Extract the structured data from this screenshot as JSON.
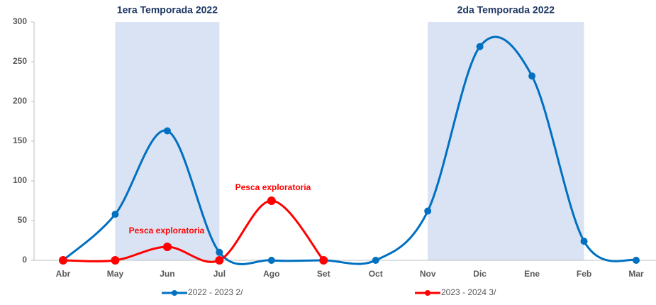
{
  "chart_data": {
    "type": "line",
    "categories": [
      "Abr",
      "May",
      "Jun",
      "Jul",
      "Ago",
      "Set",
      "Oct",
      "Nov",
      "Dic",
      "Ene",
      "Feb",
      "Mar"
    ],
    "series": [
      {
        "name": "2022 - 2023 2/",
        "color": "#0070c0",
        "values": [
          0,
          58,
          163,
          10,
          0,
          0,
          0,
          62,
          269,
          232,
          24,
          0
        ]
      },
      {
        "name": "2023 - 2024 3/",
        "color": "#ff0000",
        "values": [
          0,
          0,
          17,
          0,
          75,
          0,
          null,
          null,
          null,
          null,
          null,
          null
        ]
      }
    ],
    "bands": [
      {
        "label": "1era Temporada 2022",
        "from": "May",
        "to": "Jul",
        "color": "#dae3f3"
      },
      {
        "label": "2da Temporada 2022",
        "from": "Nov",
        "to": "Feb",
        "color": "#dae3f3"
      }
    ],
    "annotations": [
      "Pesca exploratoria",
      "Pesca exploratoria"
    ],
    "ylim": [
      0,
      300
    ],
    "yticks": [
      0,
      50,
      100,
      150,
      200,
      250,
      300
    ],
    "legend": "bottom",
    "grid": false
  }
}
